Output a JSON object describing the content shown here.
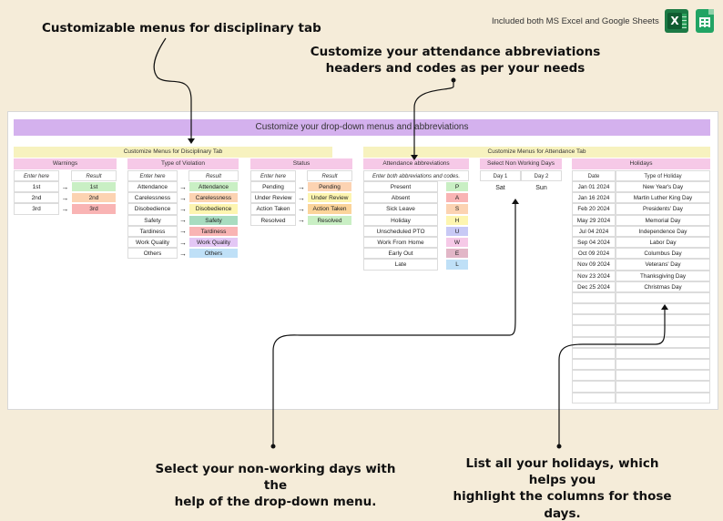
{
  "callouts": {
    "disciplinary": "Customizable menus for disciplinary tab",
    "attendance_line1": "Customize your attendance abbreviations",
    "attendance_line2": "headers and codes as per your needs",
    "nonworking_line1": "Select your non-working days with the",
    "nonworking_line2": "help of the drop-down menu.",
    "holidays_line1": "List all your holidays, which helps you",
    "holidays_line2": "highlight the columns for those days."
  },
  "top_note": "Included both MS Excel and Google Sheets",
  "icons": {
    "excel": "excel-icon",
    "sheets": "google-sheets-icon",
    "excel_letter": "X"
  },
  "banner": "Customize your drop-down menus and abbreviations",
  "disciplinary": {
    "section_title": "Customize Menus for Disciplinary Tab",
    "arrow": "→",
    "warnings": {
      "title": "Warnings",
      "enter_label": "Enter here",
      "result_label": "Result",
      "rows": [
        {
          "in": "1st",
          "out": "1st",
          "color": "#c9efc4"
        },
        {
          "in": "2nd",
          "out": "2nd",
          "color": "#fcd3b2"
        },
        {
          "in": "3rd",
          "out": "3rd",
          "color": "#f9b4b4"
        }
      ]
    },
    "violation": {
      "title": "Type of Violation",
      "enter_label": "Enter here",
      "result_label": "Result",
      "rows": [
        {
          "in": "Attendance",
          "out": "Attendance",
          "color": "#c9efc4"
        },
        {
          "in": "Carelessness",
          "out": "Carelessness",
          "color": "#fcd3b2"
        },
        {
          "in": "Disobedience",
          "out": "Disobedience",
          "color": "#fdf5b0"
        },
        {
          "in": "Safety",
          "out": "Safety",
          "color": "#a8dcc0"
        },
        {
          "in": "Tardiness",
          "out": "Tardiness",
          "color": "#f9b4b4"
        },
        {
          "in": "Work Quality",
          "out": "Work Quality",
          "color": "#e3c7f5"
        },
        {
          "in": "Others",
          "out": "Others",
          "color": "#bfe0f7"
        }
      ]
    },
    "status": {
      "title": "Status",
      "enter_label": "Enter here",
      "result_label": "Result",
      "rows": [
        {
          "in": "Pending",
          "out": "Pending",
          "color": "#fcd3b2"
        },
        {
          "in": "Under Review",
          "out": "Under Review",
          "color": "#fdf5b0"
        },
        {
          "in": "Action Taken",
          "out": "Action Taken",
          "color": "#fbd49a"
        },
        {
          "in": "Resolved",
          "out": "Resolved",
          "color": "#c9efc4"
        }
      ]
    }
  },
  "attendance": {
    "section_title": "Customize Menus for Attendance Tab",
    "abbrev": {
      "title": "Attendance abbreviations",
      "subtitle": "Enter both abbreviations and codes.",
      "rows": [
        {
          "in": "Present",
          "out": "P",
          "color": "#c9efc4"
        },
        {
          "in": "Absent",
          "out": "A",
          "color": "#f9b4b4"
        },
        {
          "in": "Sick Leave",
          "out": "S",
          "color": "#fcd3b2"
        },
        {
          "in": "Holiday",
          "out": "H",
          "color": "#fdf5b0"
        },
        {
          "in": "Unscheduled PTO",
          "out": "U",
          "color": "#c8c9f5"
        },
        {
          "in": "Work From Home",
          "out": "W",
          "color": "#f6c9e7"
        },
        {
          "in": "Early Out",
          "out": "E",
          "color": "#e2b6c7"
        },
        {
          "in": "Late",
          "out": "L",
          "color": "#bfe0f7"
        }
      ]
    },
    "nonworking": {
      "title": "Select Non Working Days",
      "day1_label": "Day 1",
      "day2_label": "Day 2",
      "day1_value": "Sat",
      "day2_value": "Sun"
    },
    "holidays": {
      "title": "Holidays",
      "date_label": "Date",
      "type_label": "Type of Holiday",
      "rows": [
        {
          "date": "Jan 01 2024",
          "type": "New Year's Day"
        },
        {
          "date": "Jan 16 2024",
          "type": "Martin Luther King Day"
        },
        {
          "date": "Feb 20 2024",
          "type": "Presidents' Day"
        },
        {
          "date": "May 29 2024",
          "type": "Memorial Day"
        },
        {
          "date": "Jul 04 2024",
          "type": "Independence Day"
        },
        {
          "date": "Sep 04 2024",
          "type": "Labor Day"
        },
        {
          "date": "Oct 09 2024",
          "type": "Columbus Day"
        },
        {
          "date": "Nov 09 2024",
          "type": "Veterans' Day"
        },
        {
          "date": "Nov 23 2024",
          "type": "Thanksgiving Day"
        },
        {
          "date": "Dec 25 2024",
          "type": "Christmas Day"
        },
        {
          "date": "",
          "type": ""
        },
        {
          "date": "",
          "type": ""
        },
        {
          "date": "",
          "type": ""
        },
        {
          "date": "",
          "type": ""
        },
        {
          "date": "",
          "type": ""
        },
        {
          "date": "",
          "type": ""
        },
        {
          "date": "",
          "type": ""
        },
        {
          "date": "",
          "type": ""
        },
        {
          "date": "",
          "type": ""
        },
        {
          "date": "",
          "type": ""
        }
      ]
    }
  }
}
